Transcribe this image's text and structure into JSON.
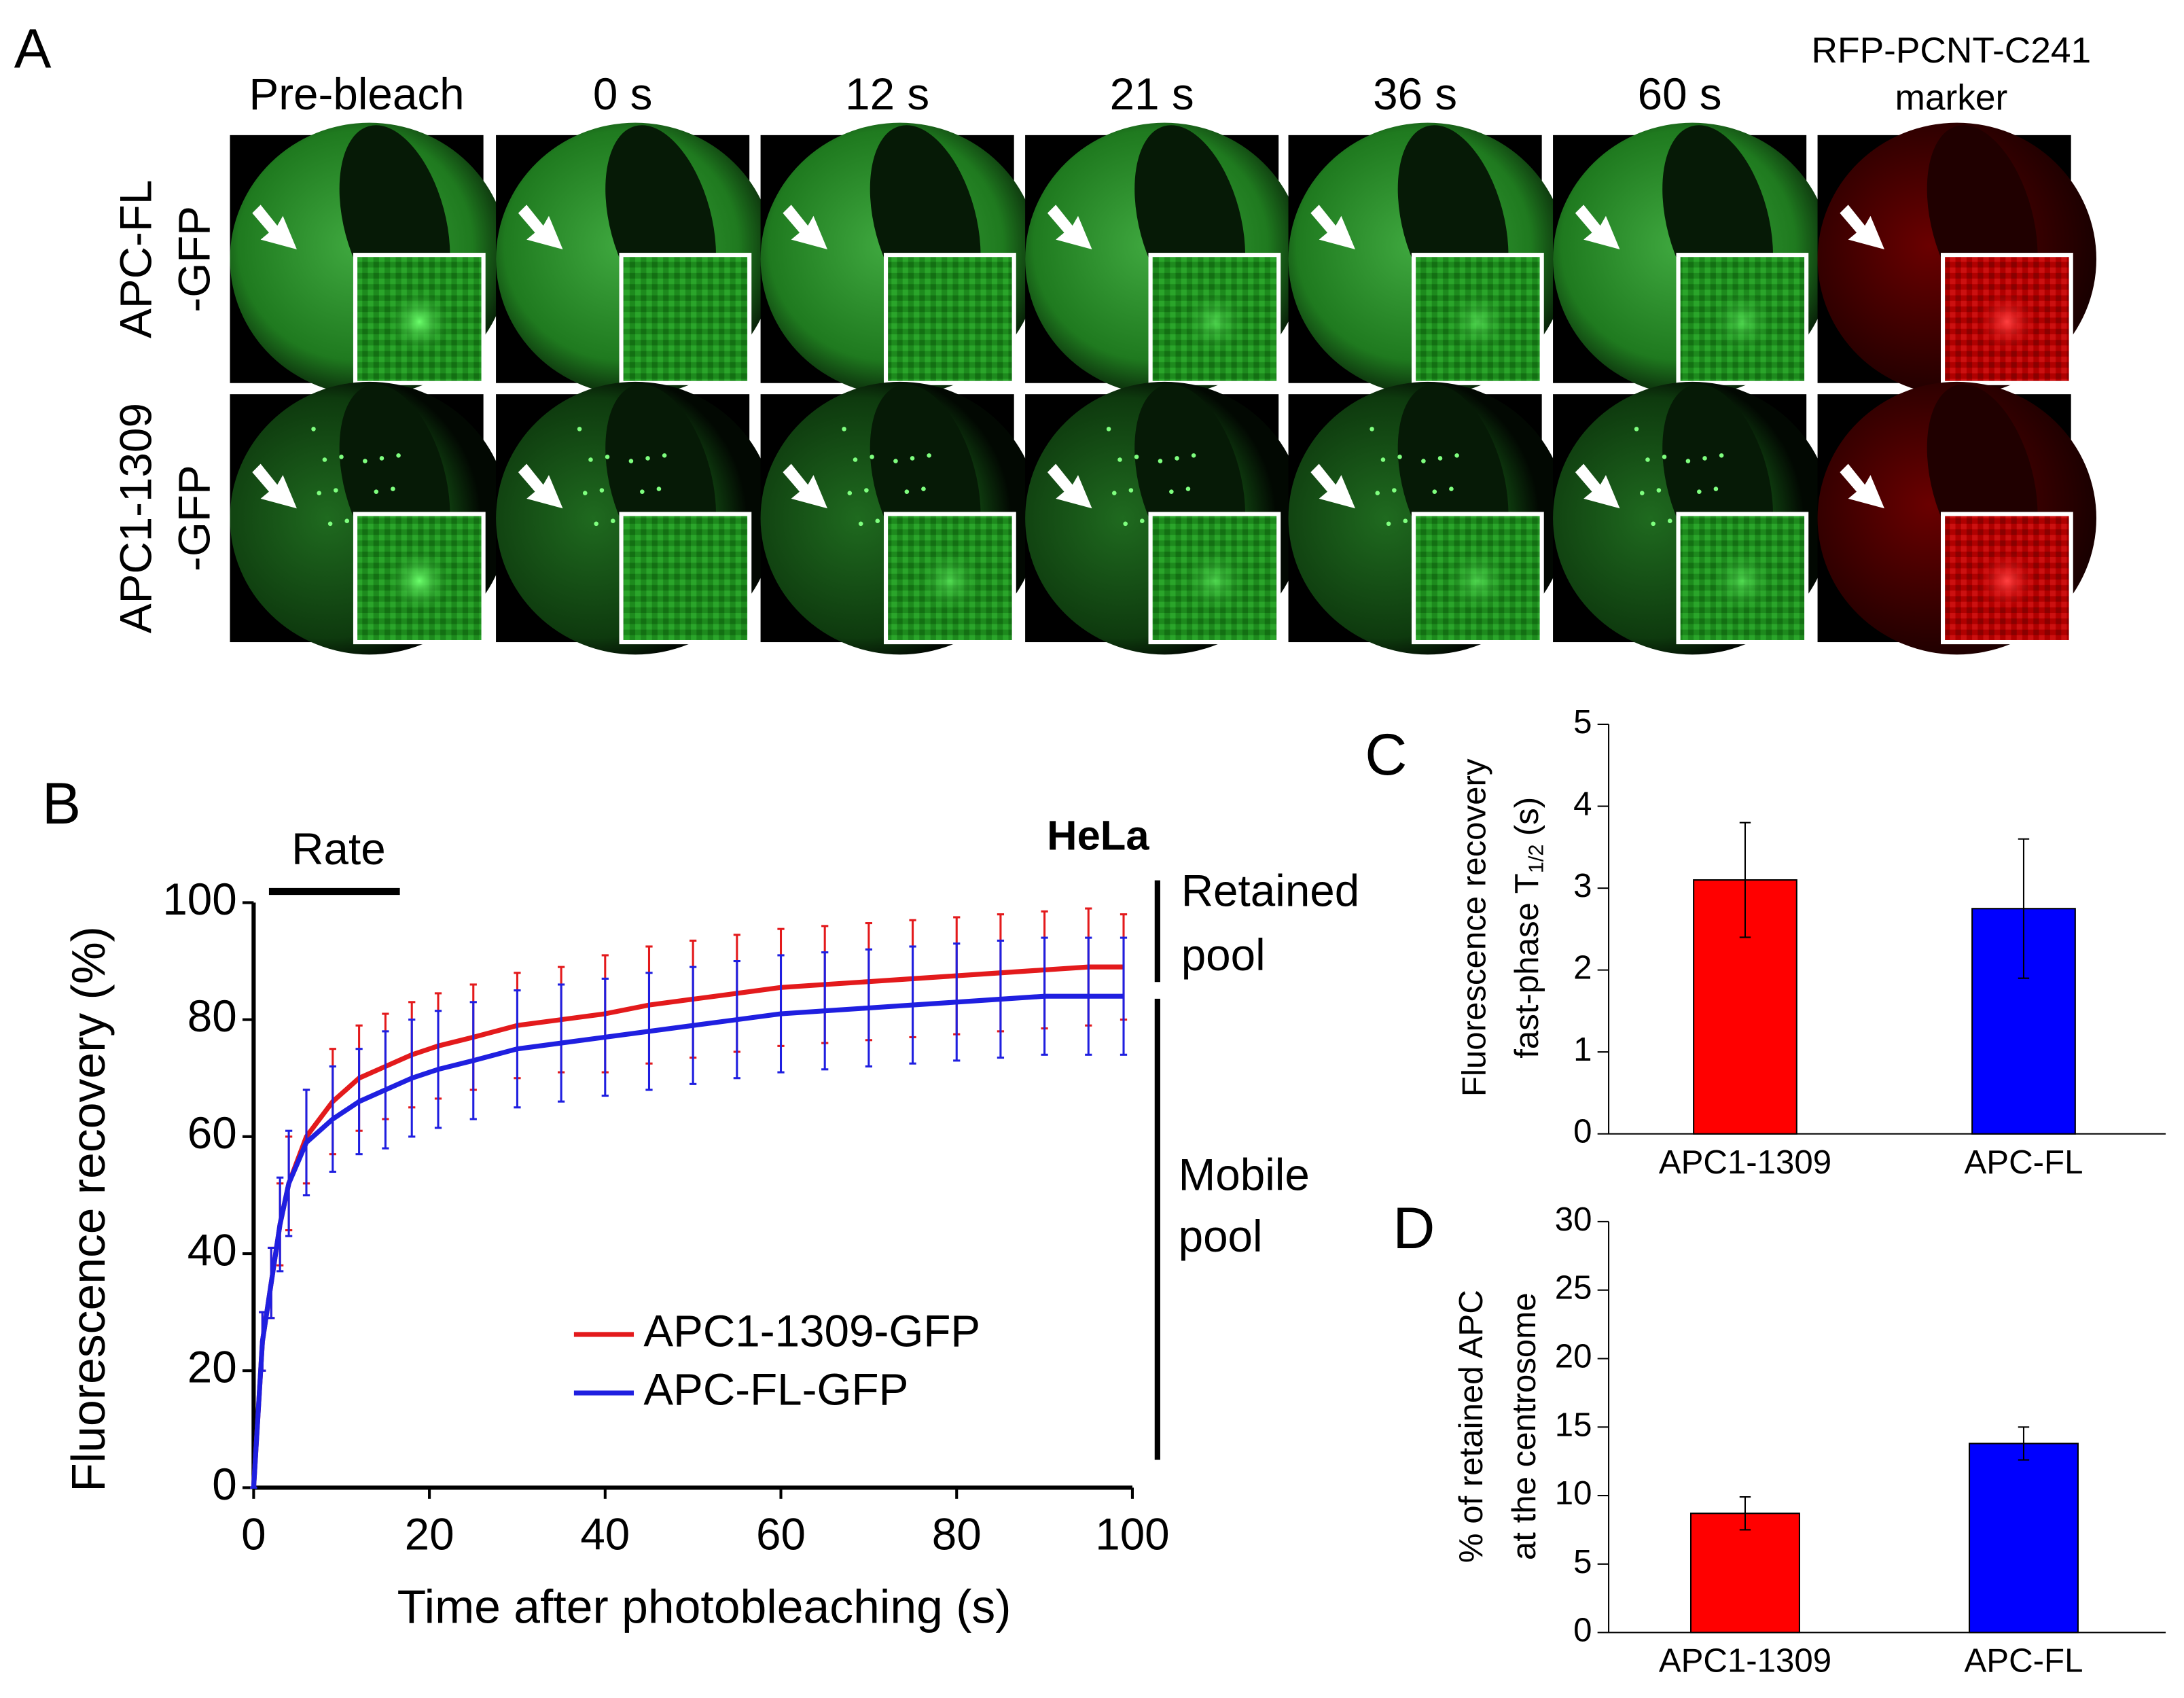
{
  "panel_a": {
    "label": "A",
    "columns": [
      "Pre-bleach",
      "0 s",
      "12 s",
      "21 s",
      "36 s",
      "60 s"
    ],
    "marker_label": [
      "RFP-PCNT-C241",
      "marker"
    ],
    "rows": [
      [
        "APC-FL",
        "-GFP"
      ],
      [
        "APC1-1309",
        "-GFP"
      ]
    ]
  },
  "chart_data": [
    {
      "type": "line",
      "label": "B",
      "title": "HeLa",
      "xlabel": "Time after photobleaching (s)",
      "ylabel": "Fluorescence recovery (%)",
      "annotations": [
        "Rate",
        "Retained",
        "pool",
        "Mobile",
        "pool"
      ],
      "x": [
        0,
        1,
        2,
        3,
        4,
        6,
        9,
        12,
        15,
        18,
        21,
        25,
        30,
        35,
        40,
        45,
        50,
        55,
        60,
        65,
        70,
        75,
        80,
        85,
        90,
        95,
        99
      ],
      "series": [
        {
          "name": "APC1-1309-GFP",
          "color": "#e31a1c",
          "values": [
            0,
            25,
            35,
            45,
            52,
            60,
            66,
            70,
            72,
            74,
            75.5,
            77,
            79,
            80,
            81,
            82.5,
            83.5,
            84.5,
            85.5,
            86,
            86.5,
            87,
            87.5,
            88,
            88.5,
            89,
            89
          ],
          "errors": [
            0,
            5,
            6,
            7,
            8,
            8,
            9,
            9,
            9,
            9,
            9,
            9,
            9,
            9,
            10,
            10,
            10,
            10,
            10,
            10,
            10,
            10,
            10,
            10,
            10,
            10,
            9
          ]
        },
        {
          "name": "APC-FL-GFP",
          "color": "#1f1fe0",
          "values": [
            0,
            25,
            35,
            45,
            52,
            59,
            63,
            66,
            68,
            70,
            71.5,
            73,
            75,
            76,
            77,
            78,
            79,
            80,
            81,
            81.5,
            82,
            82.5,
            83,
            83.5,
            84,
            84,
            84
          ],
          "errors": [
            0,
            5,
            6,
            8,
            9,
            9,
            9,
            9,
            10,
            10,
            10,
            10,
            10,
            10,
            10,
            10,
            10,
            10,
            10,
            10,
            10,
            10,
            10,
            10,
            10,
            10,
            10
          ]
        }
      ],
      "xlim": [
        0,
        100
      ],
      "xticks": [
        0,
        20,
        40,
        60,
        80,
        100
      ],
      "ylim": [
        0,
        100
      ],
      "yticks": [
        0,
        20,
        40,
        60,
        80,
        100
      ]
    },
    {
      "type": "bar",
      "label": "C",
      "ylabel": [
        "Fluorescence recovery",
        "fast-phase T",
        "1/2",
        "(s)"
      ],
      "categories": [
        "APC1-1309",
        "APC-FL"
      ],
      "values": [
        3.1,
        2.75
      ],
      "errors": [
        0.7,
        0.85
      ],
      "colors": [
        "#ff0000",
        "#0000ff"
      ],
      "ylim": [
        0,
        5
      ],
      "yticks": [
        0,
        1,
        2,
        3,
        4,
        5
      ]
    },
    {
      "type": "bar",
      "label": "D",
      "ylabel": [
        "% of retained APC",
        "at the centrosome"
      ],
      "categories": [
        "APC1-1309",
        "APC-FL"
      ],
      "values": [
        8.7,
        13.8
      ],
      "errors": [
        1.2,
        1.2
      ],
      "colors": [
        "#ff0000",
        "#0000ff"
      ],
      "ylim": [
        0,
        30
      ],
      "yticks": [
        0,
        5,
        10,
        15,
        20,
        25,
        30
      ]
    }
  ]
}
